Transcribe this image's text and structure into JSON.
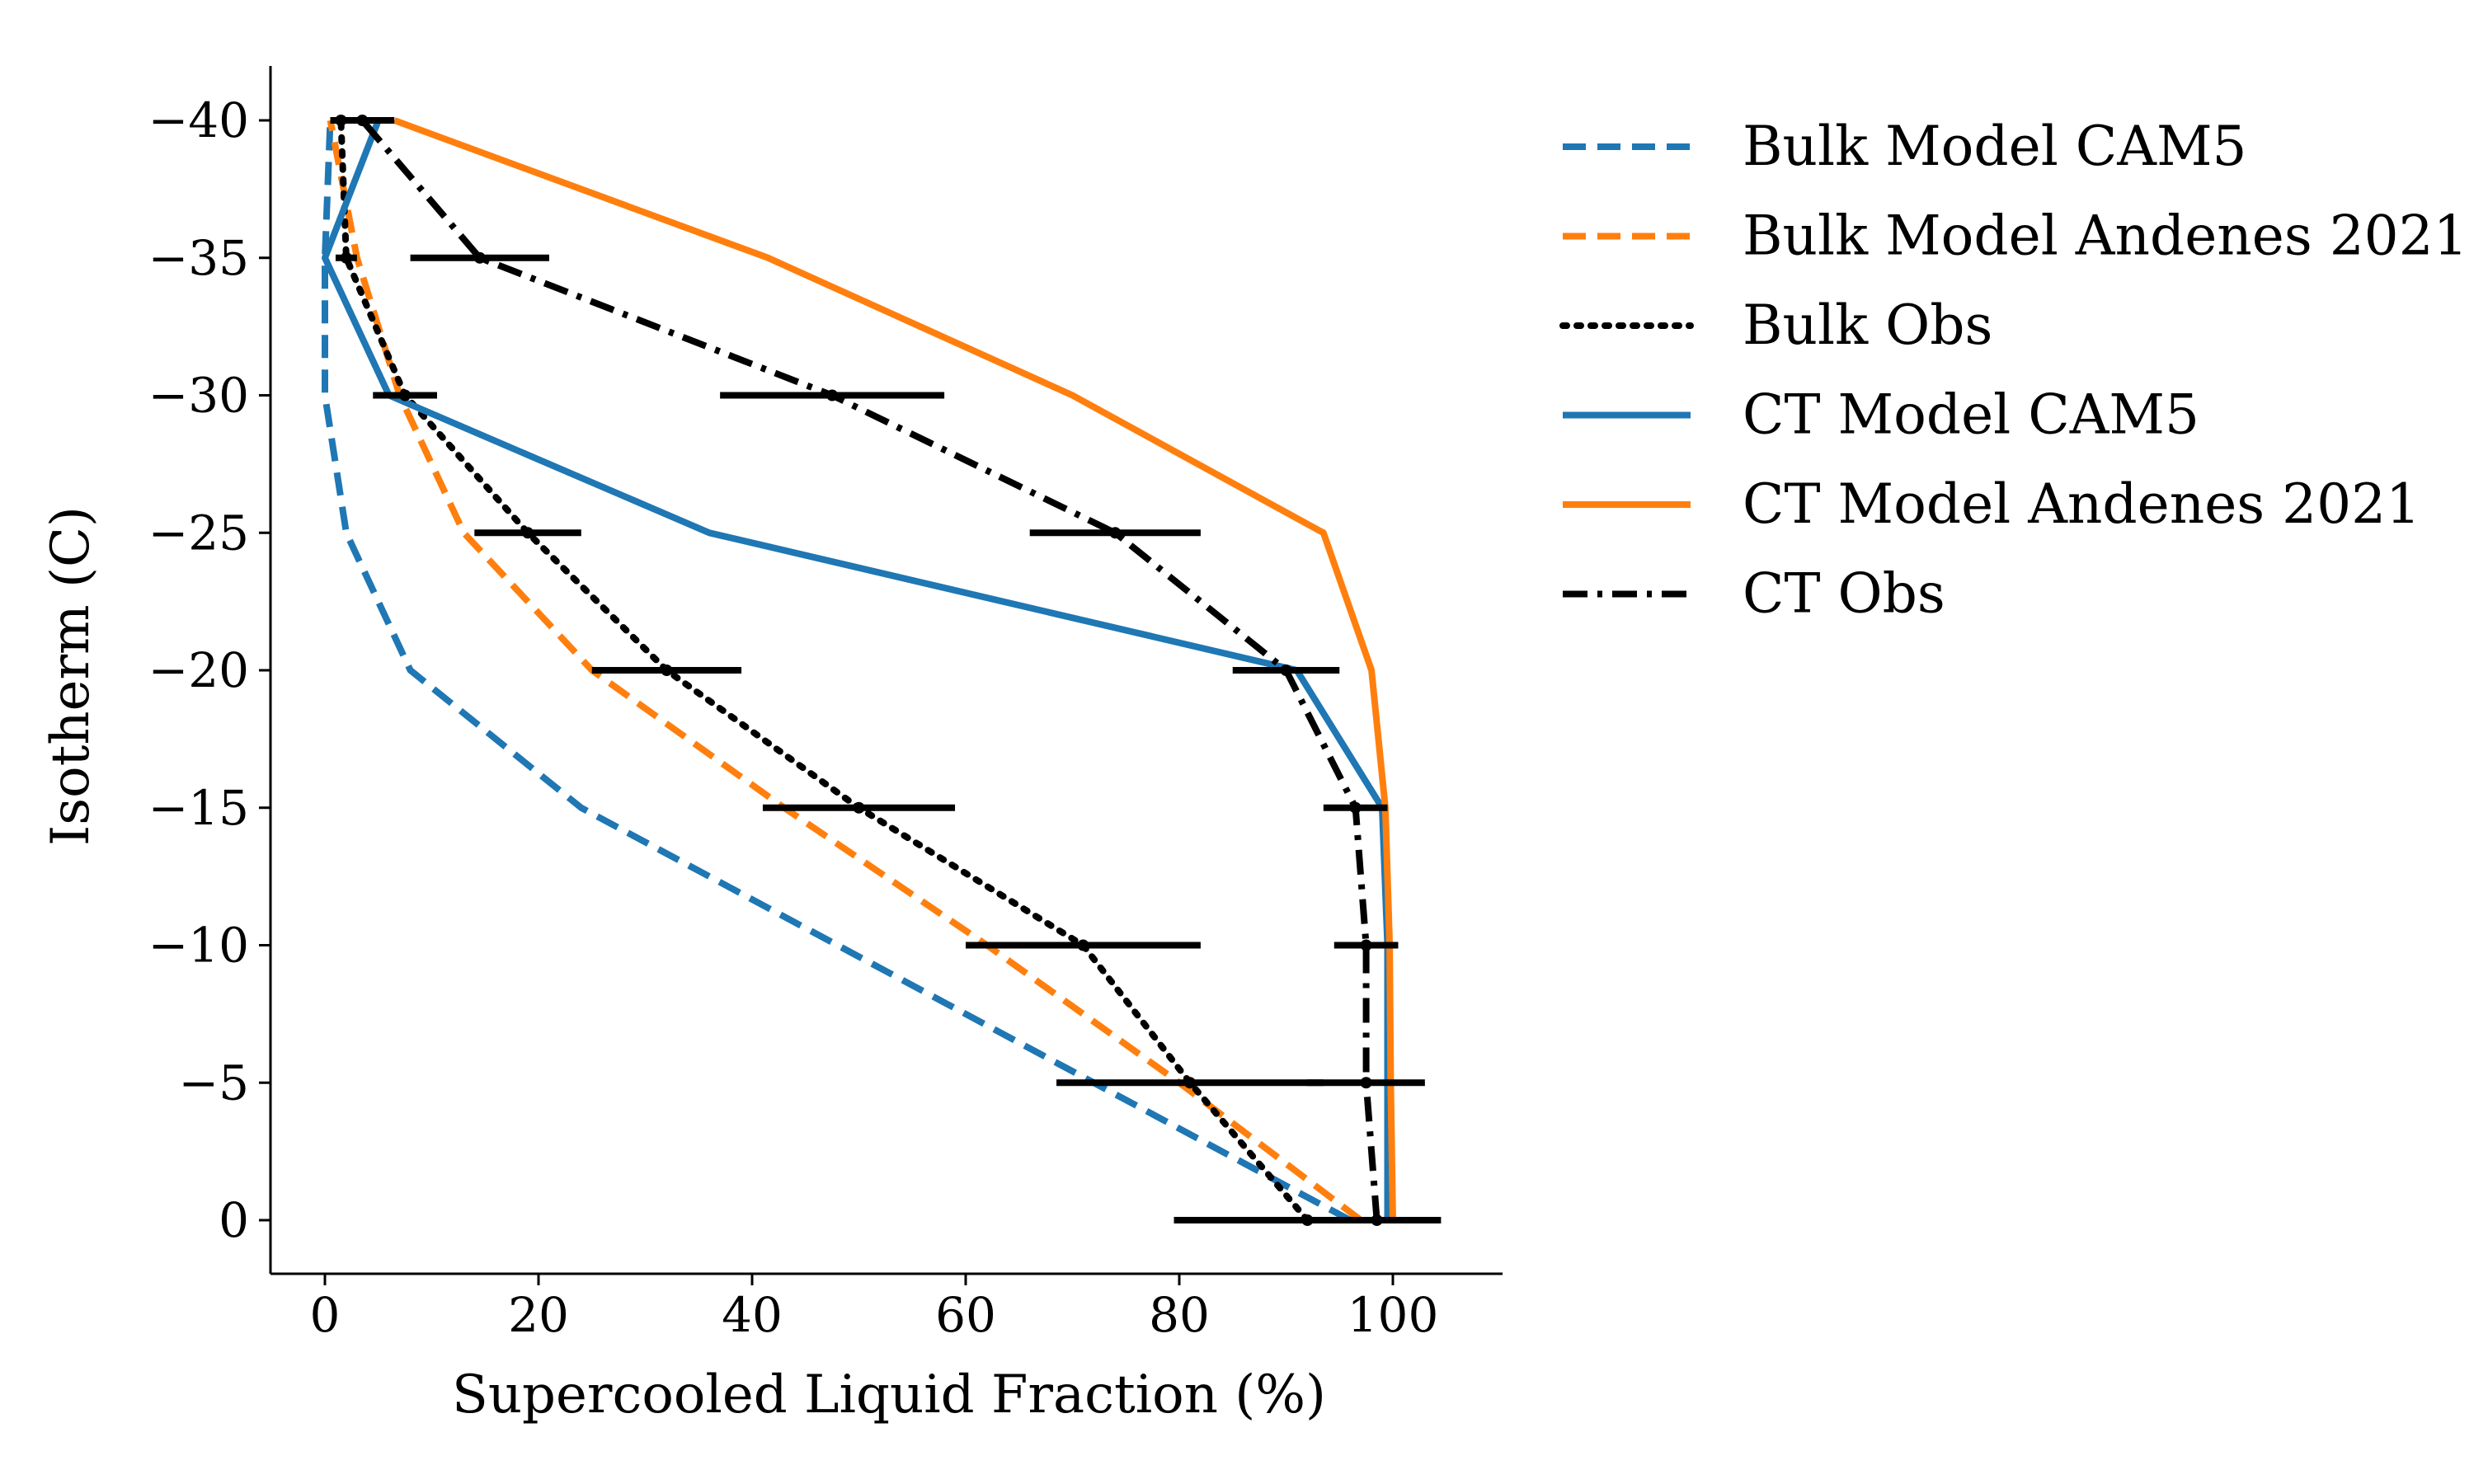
{
  "chart_data": {
    "type": "line",
    "title": "",
    "xlabel": "Supercooled Liquid Fraction (%)",
    "ylabel": "Isotherm (C)",
    "xlim": [
      -5,
      110
    ],
    "ylim": [
      -42,
      2
    ],
    "y_inverted": true,
    "xticks": [
      0,
      20,
      40,
      60,
      80,
      100
    ],
    "xtick_labels": [
      "0",
      "20",
      "40",
      "60",
      "80",
      "100"
    ],
    "yticks": [
      -40,
      -35,
      -30,
      -25,
      -20,
      -15,
      -10,
      -5,
      0
    ],
    "ytick_labels": [
      "−40",
      "−35",
      "−30",
      "−25",
      "−20",
      "−15",
      "−10",
      "−5",
      "0"
    ],
    "grid": false,
    "legend_placement": "outside right",
    "series": [
      {
        "name": "Bulk Model CAM5",
        "color": "#1f77b4",
        "style": "dashed",
        "x": [
          96,
          72,
          48,
          24,
          8,
          2,
          0,
          0,
          0.5
        ],
        "y": [
          0,
          -5,
          -10,
          -15,
          -20,
          -25,
          -30,
          -35,
          -40
        ]
      },
      {
        "name": "Bulk Model Andenes 2021",
        "color": "#ff7f0e",
        "style": "dashed",
        "x": [
          97,
          80,
          62,
          43,
          25,
          13,
          7,
          3,
          0.5
        ],
        "y": [
          0,
          -5,
          -10,
          -15,
          -20,
          -25,
          -30,
          -35,
          -40
        ]
      },
      {
        "name": "Bulk Obs",
        "color": "#000000",
        "style": "dotted",
        "x": [
          92,
          81,
          71,
          50,
          32,
          19,
          7.5,
          2,
          1.5
        ],
        "y": [
          0,
          -5,
          -10,
          -15,
          -20,
          -25,
          -30,
          -35,
          -40
        ]
      },
      {
        "name": "CT Model CAM5",
        "color": "#1f77b4",
        "style": "solid",
        "x": [
          99.5,
          99.5,
          99.5,
          99,
          91,
          36,
          6,
          0,
          5
        ],
        "y": [
          0,
          -5,
          -10,
          -15,
          -20,
          -25,
          -30,
          -35,
          -40
        ]
      },
      {
        "name": "CT Model Andenes 2021",
        "color": "#ff7f0e",
        "style": "solid",
        "x": [
          100,
          99.8,
          99.7,
          99.3,
          98,
          93.5,
          70,
          41.5,
          6.5
        ],
        "y": [
          0,
          -5,
          -10,
          -15,
          -20,
          -25,
          -30,
          -35,
          -40
        ]
      },
      {
        "name": "CT Obs",
        "color": "#000000",
        "style": "dashdot",
        "x": [
          98.5,
          97.5,
          97.5,
          96.5,
          90,
          74,
          47.5,
          14.5,
          3.5
        ],
        "y": [
          0,
          -5,
          -10,
          -15,
          -20,
          -25,
          -30,
          -35,
          -40
        ]
      }
    ],
    "error_bars": {
      "bulk_obs": {
        "y": [
          0,
          -5,
          -10,
          -15,
          -20,
          -25,
          -30,
          -35,
          -40
        ],
        "x": [
          92,
          81,
          71,
          50,
          32,
          19,
          7.5,
          2,
          1.5
        ],
        "xerr": [
          12.5,
          12.5,
          11,
          9,
          7,
          5,
          3,
          1,
          0.5
        ]
      },
      "ct_obs": {
        "y": [
          0,
          -5,
          -10,
          -15,
          -20,
          -25,
          -30,
          -35,
          -40
        ],
        "x": [
          98.5,
          97.5,
          97.5,
          96.5,
          90,
          74,
          47.5,
          14.5,
          3.5
        ],
        "xerr": [
          6,
          5.5,
          3,
          3,
          5,
          8,
          10.5,
          6.5,
          3
        ]
      }
    }
  }
}
